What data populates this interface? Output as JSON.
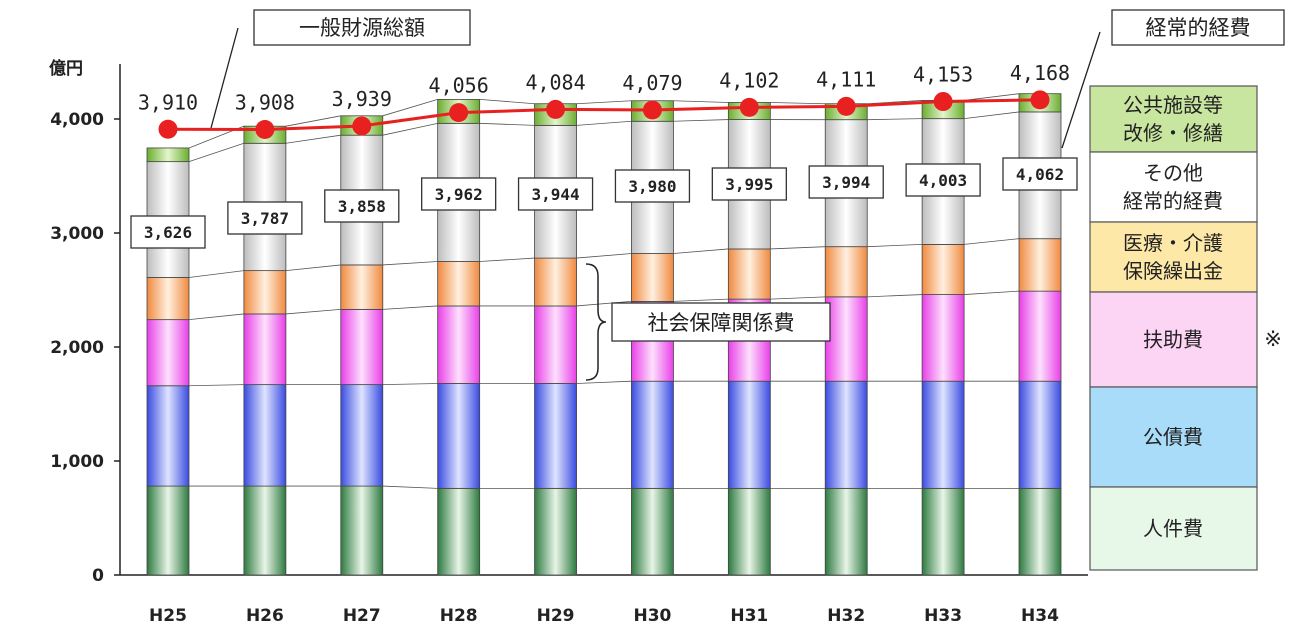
{
  "chart_data": {
    "type": "bar",
    "ylabel": "億円",
    "ylim": [
      0,
      4000
    ],
    "yticks": [
      "0",
      "1,000",
      "2,000",
      "3,000",
      "4,000"
    ],
    "categories": [
      "H25",
      "H26",
      "H27",
      "H28",
      "H29",
      "H30",
      "H31",
      "H32",
      "H33",
      "H34"
    ],
    "series": [
      {
        "name": "人件費",
        "color": "#3a8a50",
        "values": [
          780,
          780,
          780,
          760,
          760,
          760,
          760,
          760,
          760,
          760
        ]
      },
      {
        "name": "公債費",
        "color": "#5a6cf0",
        "values": [
          880,
          890,
          890,
          920,
          920,
          940,
          940,
          940,
          940,
          940
        ]
      },
      {
        "name": "扶助費",
        "color": "#f070f0",
        "values": [
          580,
          620,
          660,
          680,
          680,
          700,
          720,
          740,
          760,
          790
        ]
      },
      {
        "name": "医療・介護保険繰出金",
        "color": "#f5a060",
        "values": [
          370,
          380,
          390,
          390,
          420,
          420,
          440,
          440,
          440,
          460
        ]
      },
      {
        "name": "その他経常的経費",
        "color": "#e8e8e8",
        "values": [
          1016,
          1117,
          1138,
          1212,
          1164,
          1160,
          1135,
          1114,
          1103,
          1112
        ]
      },
      {
        "name": "公共施設等改修・修繕",
        "color": "#8ec850",
        "values": [
          120,
          150,
          170,
          210,
          190,
          180,
          150,
          140,
          160,
          160
        ]
      }
    ],
    "keizyou_totals": [
      "3,626",
      "3,787",
      "3,858",
      "3,962",
      "3,944",
      "3,980",
      "3,995",
      "3,994",
      "4,003",
      "4,062"
    ],
    "line": {
      "name": "一般財源総額",
      "color": "#e82020",
      "values": [
        3910,
        3908,
        3939,
        4056,
        4084,
        4079,
        4102,
        4111,
        4153,
        4168
      ],
      "labels": [
        "3,910",
        "3,908",
        "3,939",
        "4,056",
        "4,084",
        "4,079",
        "4,102",
        "4,111",
        "4,153",
        "4,168"
      ]
    },
    "legend": [
      {
        "lines": [
          "公共施設等",
          "改修・修繕"
        ],
        "color": "#c8e6a0"
      },
      {
        "lines": [
          "その他",
          "経常的経費"
        ],
        "color": "#ffffff"
      },
      {
        "lines": [
          "医療・介護",
          "保険繰出金"
        ],
        "color": "#fde8a8"
      },
      {
        "lines": [
          "扶助費"
        ],
        "color": "#fcd4f4"
      },
      {
        "lines": [
          "公債費"
        ],
        "color": "#a8dcf8"
      },
      {
        "lines": [
          "人件費"
        ],
        "color": "#e8f8e8"
      }
    ],
    "annotations": {
      "line_title": "一般財源総額",
      "keizyou_title": "経常的経費",
      "social_security": "社会保障関係費",
      "note_mark": "※"
    }
  }
}
